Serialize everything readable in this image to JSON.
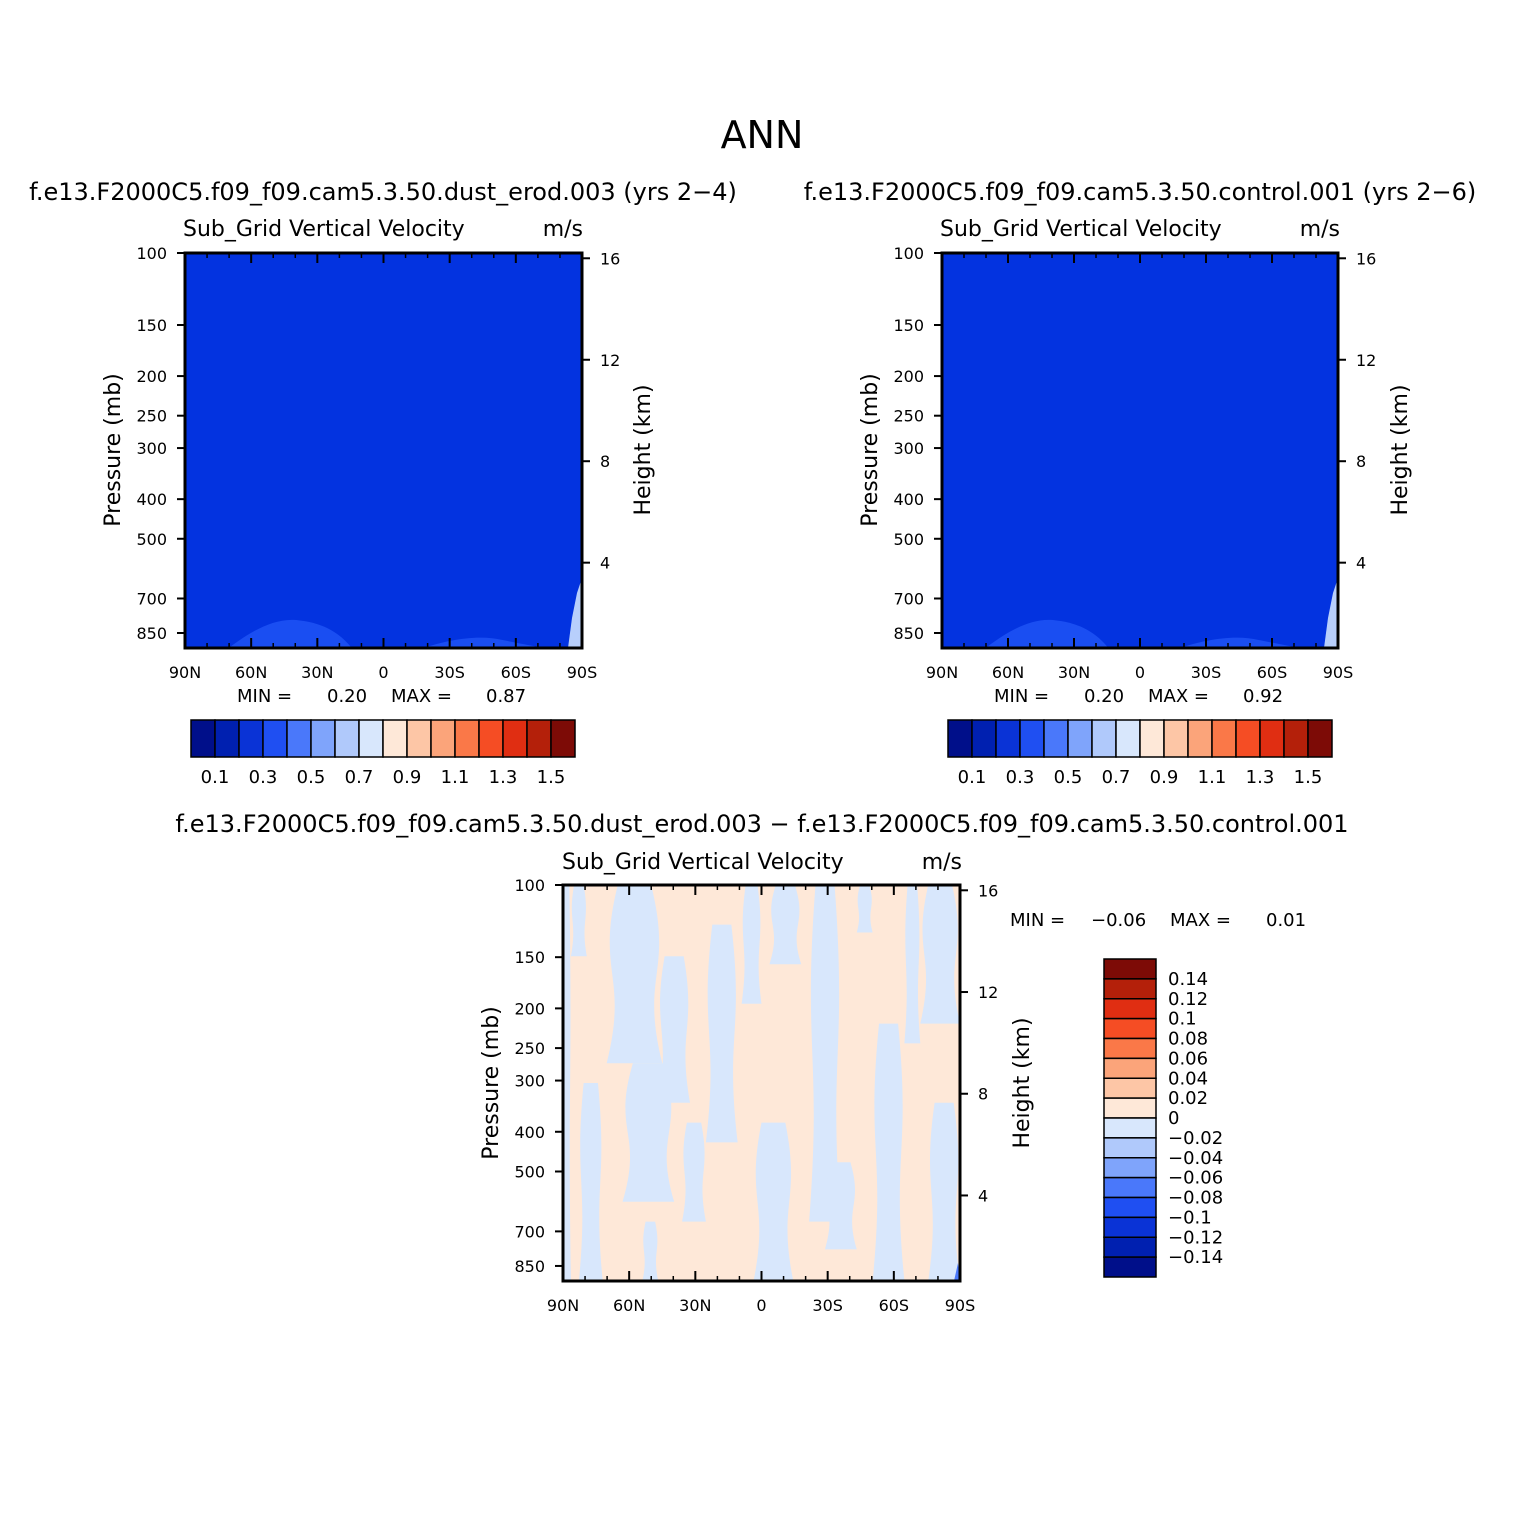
{
  "figure": {
    "title": "ANN"
  },
  "colors": {
    "levels_positive": [
      "#000f8a",
      "#0020b0",
      "#0a33d6",
      "#1f4ff2",
      "#4a78fa",
      "#7fa4fb",
      "#b0c9fb",
      "#d8e7fc",
      "#fee8d8",
      "#fdc6a6",
      "#fba47a",
      "#fa7848",
      "#f54d24",
      "#e02e12",
      "#b4200a",
      "#7d0b06"
    ],
    "levels_diff": [
      "#000f8a",
      "#0020b0",
      "#0a33d6",
      "#1f4ff2",
      "#4a78fa",
      "#7fa4fb",
      "#b0c9fb",
      "#d8e7fc",
      "#fee8d8",
      "#fdc6a6",
      "#fba47a",
      "#fa7848",
      "#f54d24",
      "#e02e12",
      "#b4200a",
      "#7d0b06"
    ]
  },
  "chart_data": [
    {
      "type": "heatmap",
      "case_title": "f.e13.F2000C5.f09_f09.cam5.3.50.dust_erod.003 (yrs 2−4)",
      "variable": "Sub_Grid Vertical Velocity",
      "units": "m/s",
      "ylabel": "Pressure (mb)",
      "ylabel_right": "Height (km)",
      "x_ticks": [
        "90N",
        "60N",
        "30N",
        "0",
        "30S",
        "60S",
        "90S"
      ],
      "y_ticks": [
        "100",
        "150",
        "200",
        "250",
        "300",
        "400",
        "500",
        "700",
        "850"
      ],
      "y_right_ticks": [
        "16",
        "12",
        "8",
        "4"
      ],
      "min_label": "MIN =",
      "min_value": "0.20",
      "max_label": "MAX =",
      "max_value": "0.87",
      "colorbar_labels": [
        "0.1",
        "0.3",
        "0.5",
        "0.7",
        "0.9",
        "1.1",
        "1.3",
        "1.5"
      ],
      "dominant_value_range": [
        0.2,
        0.3
      ],
      "grid": false
    },
    {
      "type": "heatmap",
      "case_title": "f.e13.F2000C5.f09_f09.cam5.3.50.control.001 (yrs 2−6)",
      "variable": "Sub_Grid Vertical Velocity",
      "units": "m/s",
      "ylabel": "Pressure (mb)",
      "ylabel_right": "Height (km)",
      "x_ticks": [
        "90N",
        "60N",
        "30N",
        "0",
        "30S",
        "60S",
        "90S"
      ],
      "y_ticks": [
        "100",
        "150",
        "200",
        "250",
        "300",
        "400",
        "500",
        "700",
        "850"
      ],
      "y_right_ticks": [
        "16",
        "12",
        "8",
        "4"
      ],
      "min_label": "MIN =",
      "min_value": "0.20",
      "max_label": "MAX =",
      "max_value": "0.92",
      "colorbar_labels": [
        "0.1",
        "0.3",
        "0.5",
        "0.7",
        "0.9",
        "1.1",
        "1.3",
        "1.5"
      ],
      "dominant_value_range": [
        0.2,
        0.3
      ],
      "grid": false
    },
    {
      "type": "heatmap",
      "case_title": "f.e13.F2000C5.f09_f09.cam5.3.50.dust_erod.003 − f.e13.F2000C5.f09_f09.cam5.3.50.control.001",
      "variable": "Sub_Grid Vertical Velocity",
      "units": "m/s",
      "ylabel": "Pressure (mb)",
      "ylabel_right": "Height (km)",
      "x_ticks": [
        "90N",
        "60N",
        "30N",
        "0",
        "30S",
        "60S",
        "90S"
      ],
      "y_ticks": [
        "100",
        "150",
        "200",
        "250",
        "300",
        "400",
        "500",
        "700",
        "850"
      ],
      "y_right_ticks": [
        "16",
        "12",
        "8",
        "4"
      ],
      "min_label": "MIN =",
      "min_value": "−0.06",
      "max_label": "MAX =",
      "max_value": "0.01",
      "colorbar_labels": [
        "0.14",
        "0.12",
        "0.1",
        "0.08",
        "0.06",
        "0.04",
        "0.02",
        "0",
        "−0.02",
        "−0.04",
        "−0.06",
        "−0.08",
        "−0.1",
        "−0.12",
        "−0.14"
      ],
      "value_classes": [
        "−0.02 to 0",
        "0 to 0.02"
      ],
      "grid": false
    }
  ]
}
